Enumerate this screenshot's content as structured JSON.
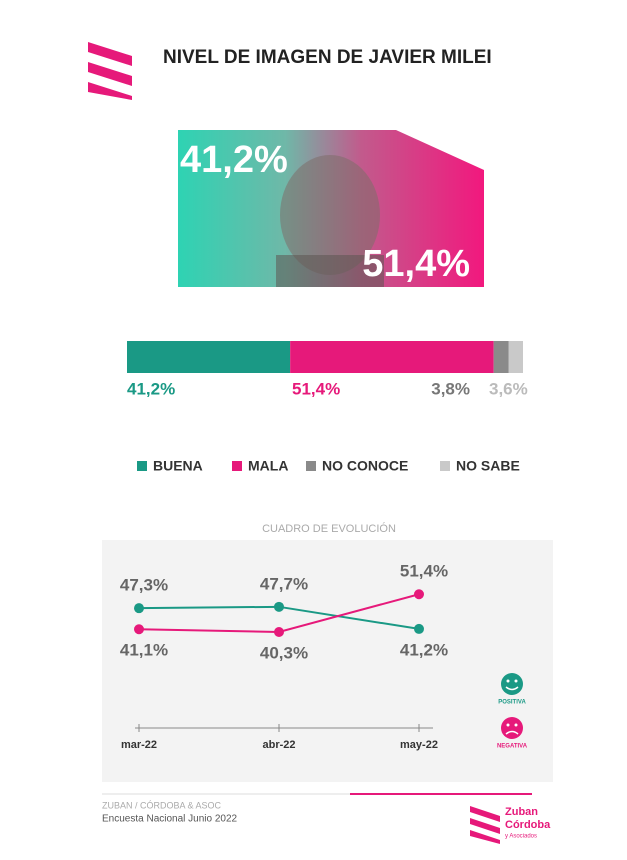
{
  "header": {
    "title": "NIVEL DE IMAGEN DE JAVIER MILEI"
  },
  "photo": {
    "positive_label": "41,2%",
    "negative_label": "51,4%"
  },
  "chart_data": [
    {
      "type": "stacked-bar",
      "xlim": [
        0,
        100
      ],
      "series": [
        {
          "name": "BUENA",
          "color": "#1a9985",
          "values": [
            41.2
          ],
          "value_labels": [
            "41,2%"
          ]
        },
        {
          "name": "MALA",
          "color": "#e6197a",
          "values": [
            51.4
          ],
          "value_labels": [
            "51,4%"
          ]
        },
        {
          "name": "NO CONOCE",
          "color": "#8a8a8a",
          "values": [
            3.8
          ],
          "value_labels": [
            "3,8%"
          ]
        },
        {
          "name": "NO SABE",
          "color": "#c9c9c9",
          "values": [
            3.6
          ],
          "value_labels": [
            "3,6%"
          ]
        }
      ]
    },
    {
      "type": "line",
      "title": "CUADRO DE EVOLUCIÓN",
      "categories": [
        "mar-22",
        "abr-22",
        "may-22"
      ],
      "ylim": [
        30,
        60
      ],
      "series": [
        {
          "name": "POSITIVA",
          "color": "#1a9985",
          "values": [
            47.3,
            47.7,
            41.2
          ],
          "value_labels": [
            "47,3%",
            "47,7%",
            "41,2%"
          ]
        },
        {
          "name": "NEGATIVA",
          "color": "#e6197a",
          "values": [
            41.1,
            40.3,
            51.4
          ],
          "value_labels": [
            "41,1%",
            "40,3%",
            "51,4%"
          ]
        }
      ]
    }
  ],
  "footer": {
    "source": "ZUBAN / CÓRDOBA & ASOC",
    "survey": "Encuesta Nacional Junio 2022",
    "logo_line1": "Zuban",
    "logo_line2": "Córdoba",
    "logo_line3": "y Asociados"
  }
}
